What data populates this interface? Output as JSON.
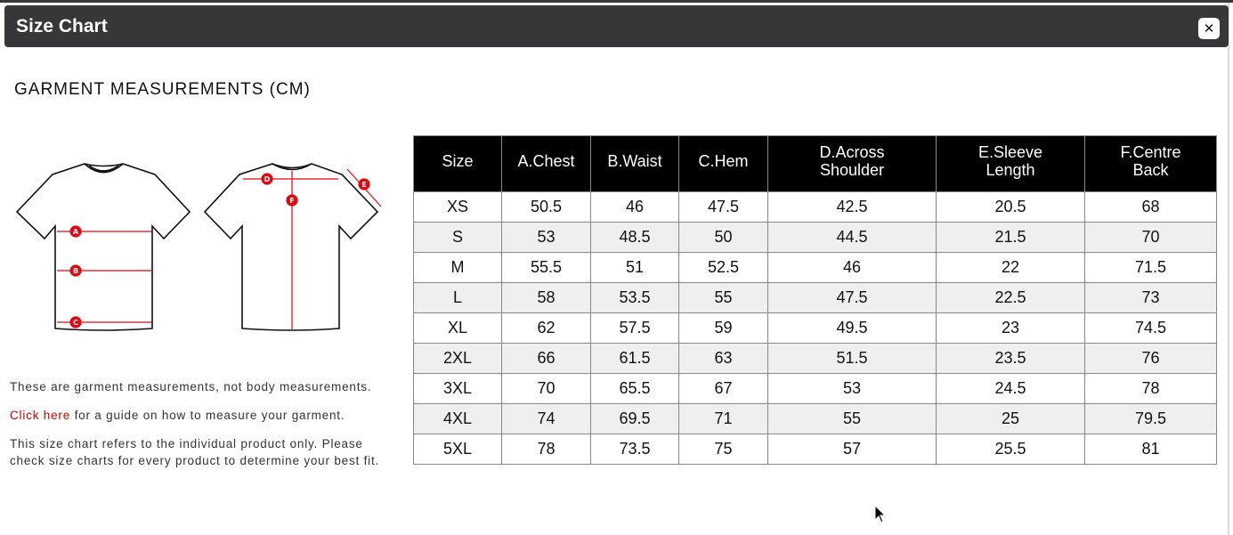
{
  "modal": {
    "title": "Size Chart",
    "close_icon": "close-icon"
  },
  "heading": "GARMENT MEASUREMENTS (CM)",
  "illustration": {
    "labels": [
      "A",
      "B",
      "C",
      "D",
      "E",
      "F"
    ],
    "accent": "#e30613"
  },
  "notes": {
    "line1": "These are garment measurements, not body measurements.",
    "link": "Click here",
    "line2": " for a guide on how to measure your garment.",
    "line3": "This size chart refers to the individual product only. Please check size charts for every product to determine your best fit."
  },
  "table": {
    "headers": [
      "Size",
      "A.Chest",
      "B.Waist",
      "C.Hem",
      "D.Across Shoulder",
      "E.Sleeve Length",
      "F.Centre Back"
    ],
    "rows": [
      [
        "XS",
        "50.5",
        "46",
        "47.5",
        "42.5",
        "20.5",
        "68"
      ],
      [
        "S",
        "53",
        "48.5",
        "50",
        "44.5",
        "21.5",
        "70"
      ],
      [
        "M",
        "55.5",
        "51",
        "52.5",
        "46",
        "22",
        "71.5"
      ],
      [
        "L",
        "58",
        "53.5",
        "55",
        "47.5",
        "22.5",
        "73"
      ],
      [
        "XL",
        "62",
        "57.5",
        "59",
        "49.5",
        "23",
        "74.5"
      ],
      [
        "2XL",
        "66",
        "61.5",
        "63",
        "51.5",
        "23.5",
        "76"
      ],
      [
        "3XL",
        "70",
        "65.5",
        "67",
        "53",
        "24.5",
        "78"
      ],
      [
        "4XL",
        "74",
        "69.5",
        "71",
        "55",
        "25",
        "79.5"
      ],
      [
        "5XL",
        "78",
        "73.5",
        "75",
        "57",
        "25.5",
        "81"
      ]
    ]
  }
}
